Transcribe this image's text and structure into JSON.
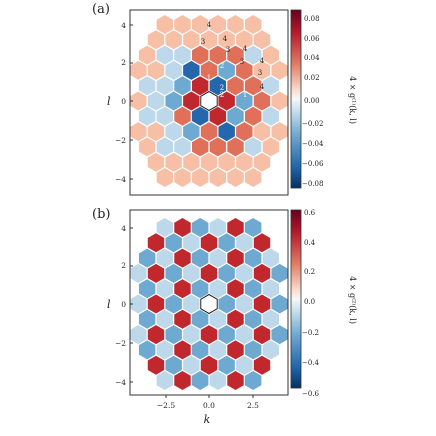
{
  "chart_data": [
    {
      "type": "heatmap",
      "panel_label": "(a)",
      "xlabel": "",
      "ylabel": "l",
      "xlim": [
        -4.5,
        4.5
      ],
      "ylim": [
        -5,
        5
      ],
      "y_ticks": [
        "4",
        "2",
        "0",
        "−2",
        "−4"
      ],
      "x_ticks": [],
      "colorbar": {
        "label": "4 × g⁽¹⁾(k, l)",
        "min": -0.08,
        "max": 0.08,
        "ticks": [
          "0.08",
          "0.06",
          "0.04",
          "0.02",
          "0.00",
          "−0.02",
          "−0.04",
          "−0.06",
          "−0.08"
        ]
      },
      "cells": [
        {
          "x": 0,
          "y": 4,
          "v": 0.01,
          "label": "4"
        },
        {
          "x": 0,
          "y": 3.2,
          "v": -0.015,
          "label": "3"
        },
        {
          "x": 0.9,
          "y": 3.2,
          "v": 0.04,
          "label": "4"
        },
        {
          "x": 0.9,
          "y": 2.4,
          "v": -0.01,
          "label": "3"
        },
        {
          "x": 1.8,
          "y": 2.4,
          "v": 0.035,
          "label": "4"
        },
        {
          "x": 1.8,
          "y": 1.6,
          "v": -0.02,
          "label": "3"
        },
        {
          "x": 2.7,
          "y": 1.6,
          "v": 0.01,
          "label": "4"
        },
        {
          "x": 2.7,
          "y": 0.8,
          "v": -0.005,
          "label": "3"
        },
        {
          "x": 0,
          "y": 2.4,
          "v": -0.07,
          "label": "2"
        },
        {
          "x": 0.9,
          "y": 1.6,
          "v": 0.075,
          "label": "2"
        },
        {
          "x": 0.9,
          "y": 0.8,
          "v": -0.08,
          "label": "1"
        },
        {
          "x": 1.8,
          "y": 0,
          "v": 0.075,
          "label": "2"
        },
        {
          "x": 0,
          "y": 1.6,
          "v": -0.08,
          "label": "1"
        },
        {
          "x": 2.7,
          "y": 0,
          "v": 0.04,
          "label": "4"
        }
      ]
    },
    {
      "type": "heatmap",
      "panel_label": "(b)",
      "xlabel": "k",
      "ylabel": "l",
      "xlim": [
        -4.5,
        4.5
      ],
      "ylim": [
        -5,
        5
      ],
      "x_ticks": [
        "−2.5",
        "0.0",
        "2.5"
      ],
      "y_ticks": [
        "4",
        "2",
        "0",
        "−2",
        "−4"
      ],
      "colorbar": {
        "label": "4 × g⁽²⁾(k, l)",
        "min": -0.6,
        "max": 0.6,
        "ticks": [
          "0.6",
          "0.4",
          "0.2",
          "0.0",
          "−0.2",
          "−0.4",
          "−0.6"
        ]
      }
    }
  ],
  "colors": {
    "red_strong": "#c0282d",
    "red_mid": "#e0705a",
    "red_light": "#f7c0a6",
    "blue_strong": "#2566ad",
    "blue_mid": "#6ea9d1",
    "blue_light": "#bdd8ea"
  }
}
